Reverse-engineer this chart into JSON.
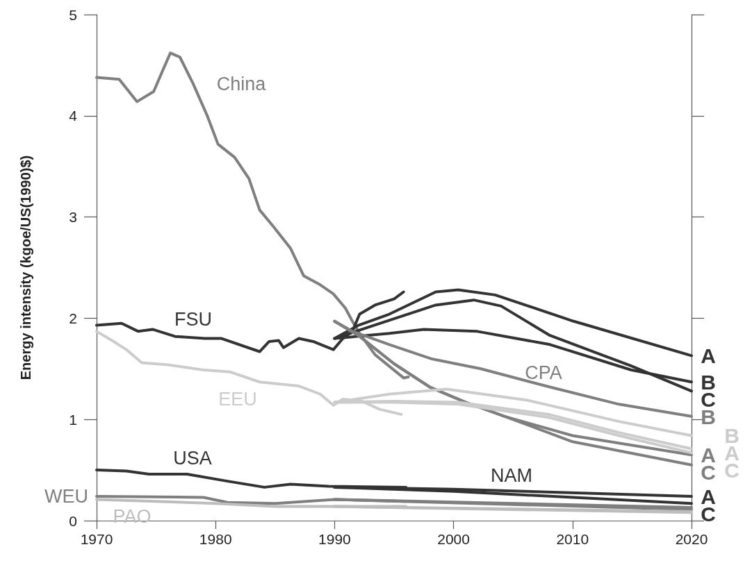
{
  "chart_data": {
    "type": "line",
    "ylabel": "Energy intensity (kgoe/US(1990)$)",
    "xlim": [
      1970,
      2020
    ],
    "xticks": [
      1970,
      1980,
      1990,
      2000,
      2010,
      2020
    ],
    "ylim": [
      0,
      5
    ],
    "yticks": [
      0,
      1,
      2,
      3,
      4,
      5
    ],
    "marker": "none",
    "line_style": "solid",
    "series": [
      {
        "name": "China",
        "color": "#7f7f7f",
        "x": [
          1970,
          1971.9,
          1973.4,
          1974.8,
          1975.6,
          1976.2,
          1977,
          1978.1,
          1979.3,
          1980.2,
          1981.6,
          1982.8,
          1983.7,
          1984.9,
          1986.3,
          1987.4,
          1988.8,
          1989.9,
          1990.9,
          1991.5,
          1992.1,
          1993.4,
          1995.8,
          1996.2
        ],
        "values": [
          4.38,
          4.36,
          4.14,
          4.24,
          4.46,
          4.62,
          4.58,
          4.32,
          4.0,
          3.72,
          3.59,
          3.38,
          3.07,
          2.9,
          2.69,
          2.42,
          2.33,
          2.24,
          2.1,
          1.97,
          1.85,
          1.64,
          1.41,
          1.42
        ]
      },
      {
        "name": "FSU",
        "color": "#333333",
        "x": [
          1970,
          1972.1,
          1973.5,
          1974.7,
          1976.6,
          1979.1,
          1980.5,
          1983.7,
          1984.5,
          1985.3,
          1985.7,
          1987,
          1988.2,
          1989.9,
          1990.7,
          1991.5,
          1992.1,
          1993.4,
          1995,
          1995.8
        ],
        "values": [
          1.93,
          1.95,
          1.87,
          1.89,
          1.82,
          1.8,
          1.8,
          1.67,
          1.77,
          1.78,
          1.71,
          1.8,
          1.77,
          1.69,
          1.8,
          1.87,
          2.04,
          2.13,
          2.19,
          2.26
        ]
      },
      {
        "name": "EEU",
        "color": "#cccccc",
        "x": [
          1970,
          1971.3,
          1972.5,
          1973.8,
          1976,
          1978.9,
          1981.2,
          1983.7,
          1987,
          1988.8,
          1989.9,
          1990.7,
          1992.3,
          1993.8,
          1995.6
        ],
        "values": [
          1.87,
          1.78,
          1.69,
          1.56,
          1.54,
          1.49,
          1.47,
          1.37,
          1.33,
          1.25,
          1.14,
          1.2,
          1.18,
          1.1,
          1.05
        ]
      },
      {
        "name": "USA",
        "color": "#333333",
        "x": [
          1970,
          1972.5,
          1974.4,
          1977.6,
          1981,
          1984.1,
          1986.3,
          1989.5,
          1996
        ],
        "values": [
          0.5,
          0.49,
          0.46,
          0.46,
          0.39,
          0.33,
          0.36,
          0.34,
          0.33
        ]
      },
      {
        "name": "WEU",
        "color": "#7f7f7f",
        "x": [
          1970,
          1979,
          1981,
          1985,
          1990,
          1996
        ],
        "values": [
          0.24,
          0.23,
          0.18,
          0.17,
          0.21,
          0.19
        ]
      },
      {
        "name": "PAO",
        "color": "#bdbdbd",
        "x": [
          1970,
          1980,
          1985,
          1996
        ],
        "values": [
          0.21,
          0.17,
          0.14,
          0.14
        ]
      },
      {
        "name": "A",
        "color": "#333333",
        "x": [
          1990,
          1992,
          1994.6,
          1998.5,
          2000.4,
          2003.5,
          2010.1,
          2020
        ],
        "values": [
          1.8,
          1.93,
          2.04,
          2.26,
          2.28,
          2.23,
          1.97,
          1.63
        ]
      },
      {
        "name": "B",
        "color": "#333333",
        "x": [
          1990,
          1994.6,
          1997.5,
          2002,
          2008.1,
          2014.9,
          2020
        ],
        "values": [
          1.8,
          1.85,
          1.89,
          1.87,
          1.74,
          1.49,
          1.37
        ]
      },
      {
        "name": "C",
        "color": "#333333",
        "x": [
          1990,
          1994.6,
          1998.5,
          2001.7,
          2004,
          2008.1,
          2014.9,
          2020
        ],
        "values": [
          1.8,
          1.98,
          2.13,
          2.18,
          2.12,
          1.83,
          1.53,
          1.28
        ]
      },
      {
        "name": "B",
        "color": "#7f7f7f",
        "x": [
          1990,
          1991.5,
          1994.6,
          1998.1,
          2002.3,
          2008.1,
          2013.9,
          2020
        ],
        "values": [
          1.97,
          1.87,
          1.74,
          1.6,
          1.5,
          1.32,
          1.15,
          1.03
        ]
      },
      {
        "name": "A",
        "color": "#7f7f7f",
        "x": [
          1990,
          1992,
          1995,
          1998,
          2001,
          2004.3,
          2010,
          2020
        ],
        "values": [
          1.97,
          1.83,
          1.55,
          1.32,
          1.17,
          1.03,
          0.84,
          0.65
        ]
      },
      {
        "name": "C",
        "color": "#7f7f7f",
        "x": [
          1990,
          1992,
          1995,
          1998,
          2001,
          2004.3,
          2010,
          2020
        ],
        "values": [
          1.97,
          1.83,
          1.55,
          1.32,
          1.17,
          1.03,
          0.78,
          0.55
        ]
      },
      {
        "name": "B",
        "color": "#cccccc",
        "x": [
          1990,
          1994.6,
          1999.4,
          2006.2,
          2013.9,
          2020
        ],
        "values": [
          1.17,
          1.25,
          1.3,
          1.19,
          0.98,
          0.84
        ]
      },
      {
        "name": "A",
        "color": "#cccccc",
        "x": [
          1990,
          1995,
          2000.4,
          2008,
          2013.9,
          2020
        ],
        "values": [
          1.17,
          1.18,
          1.17,
          1.05,
          0.87,
          0.71
        ]
      },
      {
        "name": "C",
        "color": "#cccccc",
        "x": [
          1990,
          1995,
          2000.4,
          2008,
          2013.9,
          2020
        ],
        "values": [
          1.17,
          1.17,
          1.15,
          1.02,
          0.84,
          0.67
        ]
      },
      {
        "name": "A",
        "color": "#333333",
        "x": [
          1990,
          2000,
          2020
        ],
        "values": [
          0.33,
          0.31,
          0.24
        ]
      },
      {
        "name": "C",
        "color": "#333333",
        "x": [
          1990,
          2000,
          2020
        ],
        "values": [
          0.33,
          0.29,
          0.17
        ]
      },
      {
        "color": "#7f7f7f",
        "x": [
          1990,
          2020
        ],
        "values": [
          0.21,
          0.13
        ]
      },
      {
        "color": "#7f7f7f",
        "x": [
          1990,
          2020
        ],
        "values": [
          0.21,
          0.11
        ]
      },
      {
        "color": "#bdbdbd",
        "x": [
          1990,
          2020
        ],
        "values": [
          0.14,
          0.09
        ]
      },
      {
        "color": "#bdbdbd",
        "x": [
          1990,
          2020
        ],
        "values": [
          0.14,
          0.08
        ]
      }
    ],
    "annotations": [
      "CPA",
      "NAM"
    ]
  }
}
